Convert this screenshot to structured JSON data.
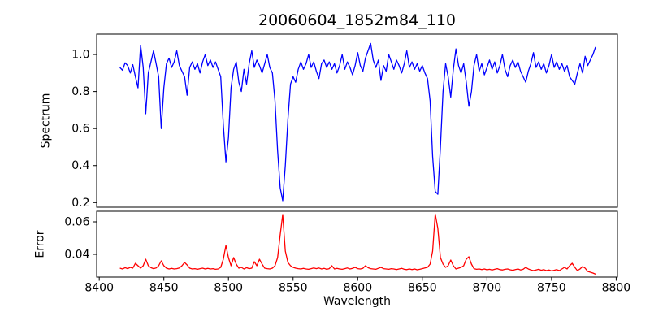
{
  "chart_data": {
    "type": "line",
    "title": "20060604_1852m84_110",
    "xlabel": "Wavelength",
    "grid": false,
    "legend": "none",
    "xlim": [
      8398,
      8801
    ],
    "x_ticks": [
      8400,
      8450,
      8500,
      8550,
      8600,
      8650,
      8700,
      8750,
      8800
    ],
    "x_tick_labels": [
      "8400",
      "8450",
      "8500",
      "8550",
      "8600",
      "8650",
      "8700",
      "8750",
      "8800"
    ],
    "panels": [
      {
        "name": "Spectrum",
        "ylabel": "Spectrum",
        "color": "#0000ff",
        "ylim": [
          0.175,
          1.11
        ],
        "y_ticks": [
          1.0,
          0.8,
          0.6,
          0.4,
          0.2
        ],
        "y_tick_labels": [
          "1.0",
          "0.8",
          "0.6",
          "0.4",
          "0.2"
        ],
        "x_start": 8416,
        "x_step": 2,
        "values": [
          0.93,
          0.915,
          0.955,
          0.94,
          0.9,
          0.945,
          0.88,
          0.82,
          1.05,
          0.93,
          0.68,
          0.9,
          0.96,
          1.02,
          0.95,
          0.88,
          0.6,
          0.82,
          0.95,
          0.98,
          0.93,
          0.96,
          1.02,
          0.94,
          0.91,
          0.88,
          0.78,
          0.93,
          0.96,
          0.92,
          0.95,
          0.9,
          0.96,
          1.0,
          0.94,
          0.97,
          0.93,
          0.96,
          0.92,
          0.88,
          0.62,
          0.42,
          0.55,
          0.82,
          0.92,
          0.96,
          0.85,
          0.8,
          0.92,
          0.84,
          0.95,
          1.02,
          0.93,
          0.97,
          0.94,
          0.9,
          0.95,
          1.0,
          0.93,
          0.9,
          0.75,
          0.48,
          0.28,
          0.21,
          0.4,
          0.65,
          0.84,
          0.88,
          0.85,
          0.92,
          0.96,
          0.92,
          0.95,
          1.0,
          0.93,
          0.96,
          0.91,
          0.87,
          0.95,
          0.97,
          0.93,
          0.96,
          0.92,
          0.95,
          0.9,
          0.94,
          1.0,
          0.92,
          0.96,
          0.93,
          0.89,
          0.94,
          1.01,
          0.94,
          0.91,
          0.98,
          1.02,
          1.06,
          0.97,
          0.93,
          0.97,
          0.86,
          0.94,
          0.91,
          1.0,
          0.96,
          0.92,
          0.97,
          0.94,
          0.9,
          0.95,
          1.02,
          0.93,
          0.96,
          0.92,
          0.95,
          0.91,
          0.94,
          0.9,
          0.87,
          0.75,
          0.45,
          0.26,
          0.245,
          0.5,
          0.8,
          0.95,
          0.88,
          0.77,
          0.92,
          1.03,
          0.94,
          0.9,
          0.95,
          0.85,
          0.72,
          0.8,
          0.94,
          1.0,
          0.91,
          0.95,
          0.89,
          0.93,
          0.97,
          0.92,
          0.96,
          0.9,
          0.94,
          1.0,
          0.92,
          0.88,
          0.94,
          0.97,
          0.93,
          0.96,
          0.91,
          0.88,
          0.85,
          0.91,
          0.95,
          1.01,
          0.93,
          0.96,
          0.92,
          0.95,
          0.9,
          0.94,
          1.0,
          0.93,
          0.96,
          0.92,
          0.95,
          0.91,
          0.94,
          0.88,
          0.86,
          0.84,
          0.9,
          0.95,
          0.9,
          0.99,
          0.94,
          0.97,
          1.0,
          1.04
        ]
      },
      {
        "name": "Error",
        "ylabel": "Error",
        "color": "#ff0000",
        "ylim": [
          0.026,
          0.0665
        ],
        "y_ticks": [
          0.06,
          0.04
        ],
        "y_tick_labels": [
          "0.06",
          "0.04"
        ],
        "x_start": 8416,
        "x_step": 2,
        "values": [
          0.0315,
          0.031,
          0.0318,
          0.0312,
          0.032,
          0.0315,
          0.0345,
          0.033,
          0.0315,
          0.033,
          0.037,
          0.033,
          0.0318,
          0.0312,
          0.0316,
          0.033,
          0.036,
          0.033,
          0.0315,
          0.031,
          0.0314,
          0.031,
          0.0312,
          0.0316,
          0.033,
          0.035,
          0.0335,
          0.0315,
          0.031,
          0.0312,
          0.0308,
          0.0312,
          0.0315,
          0.031,
          0.0314,
          0.031,
          0.0312,
          0.0308,
          0.031,
          0.032,
          0.037,
          0.0455,
          0.038,
          0.033,
          0.038,
          0.034,
          0.0315,
          0.032,
          0.031,
          0.0318,
          0.0312,
          0.0315,
          0.0355,
          0.033,
          0.037,
          0.034,
          0.0315,
          0.0312,
          0.031,
          0.0315,
          0.033,
          0.038,
          0.052,
          0.0645,
          0.042,
          0.035,
          0.033,
          0.032,
          0.0315,
          0.0312,
          0.031,
          0.0314,
          0.031,
          0.0308,
          0.0312,
          0.0316,
          0.0312,
          0.0316,
          0.031,
          0.0314,
          0.0308,
          0.0312,
          0.033,
          0.031,
          0.0314,
          0.031,
          0.0308,
          0.0312,
          0.0316,
          0.031,
          0.0314,
          0.032,
          0.0312,
          0.031,
          0.0314,
          0.033,
          0.0318,
          0.0312,
          0.031,
          0.0308,
          0.0314,
          0.032,
          0.0312,
          0.031,
          0.0308,
          0.0312,
          0.031,
          0.0306,
          0.031,
          0.0314,
          0.0308,
          0.0306,
          0.031,
          0.0306,
          0.031,
          0.0305,
          0.0308,
          0.0312,
          0.0316,
          0.032,
          0.034,
          0.042,
          0.0648,
          0.056,
          0.038,
          0.034,
          0.032,
          0.033,
          0.0365,
          0.033,
          0.031,
          0.0315,
          0.032,
          0.033,
          0.037,
          0.0385,
          0.034,
          0.0312,
          0.0308,
          0.031,
          0.0306,
          0.031,
          0.0305,
          0.0308,
          0.0304,
          0.0308,
          0.0312,
          0.0306,
          0.0304,
          0.0308,
          0.031,
          0.0305,
          0.0302,
          0.0306,
          0.031,
          0.0304,
          0.0308,
          0.032,
          0.031,
          0.0304,
          0.03,
          0.0304,
          0.0308,
          0.0302,
          0.0306,
          0.03,
          0.0304,
          0.0298,
          0.0302,
          0.0306,
          0.03,
          0.031,
          0.032,
          0.031,
          0.033,
          0.0345,
          0.032,
          0.03,
          0.031,
          0.0325,
          0.0315,
          0.0295,
          0.029,
          0.0285,
          0.0278
        ]
      }
    ]
  }
}
